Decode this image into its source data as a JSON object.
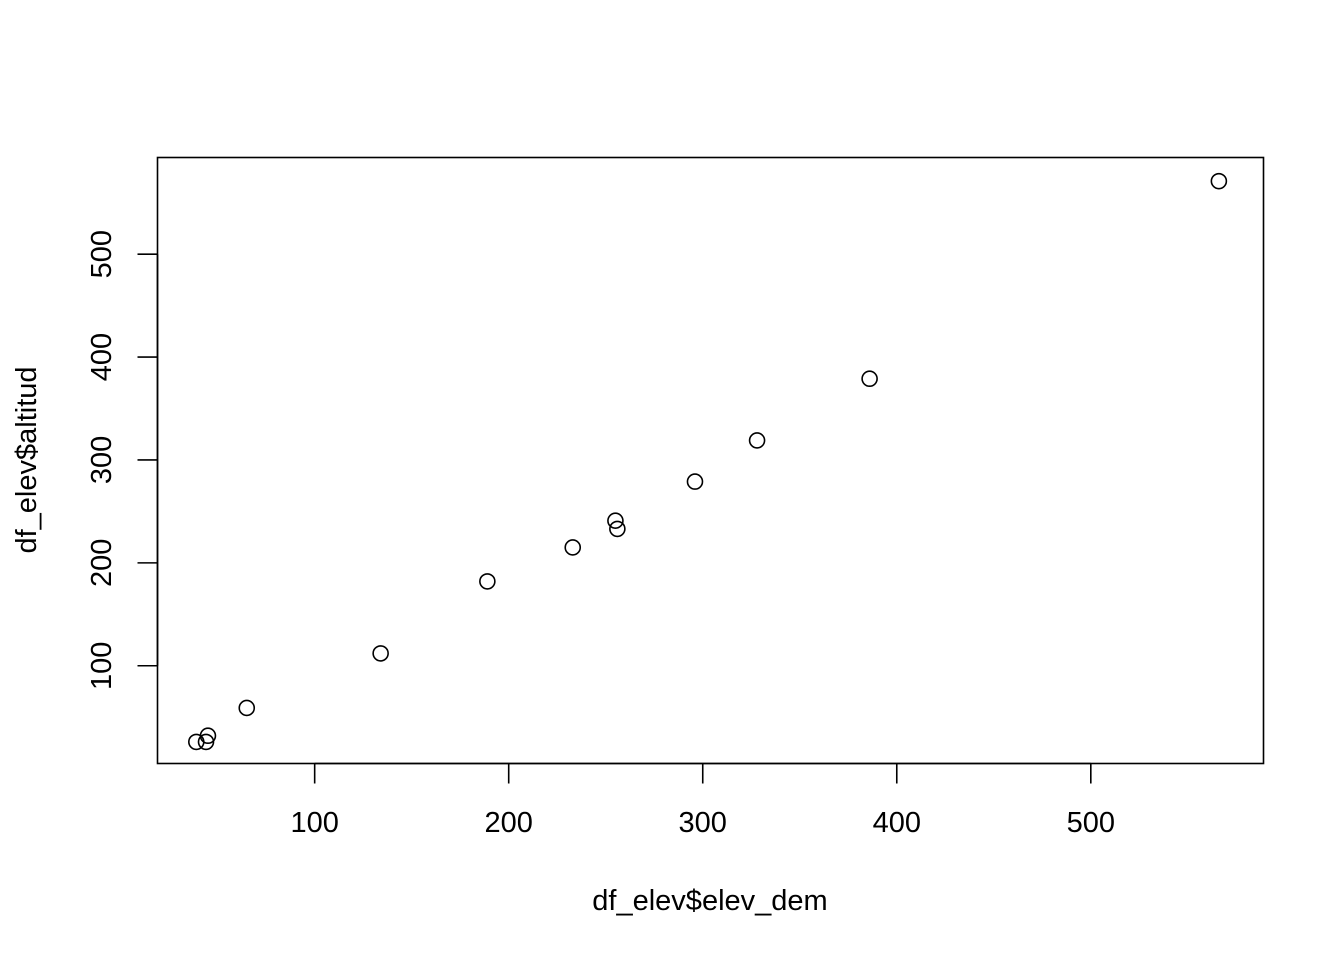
{
  "chart_data": {
    "type": "scatter",
    "title": "",
    "xlabel": "df_elev$elev_dem",
    "ylabel": "df_elev$altitud",
    "xlim": [
      19,
      589
    ],
    "ylim": [
      5,
      594
    ],
    "xticks": [
      100,
      200,
      300,
      400,
      500
    ],
    "yticks": [
      100,
      200,
      300,
      400,
      500
    ],
    "grid": false,
    "marker": "open-circle",
    "color": "#000000",
    "points": [
      {
        "x": 39,
        "y": 26
      },
      {
        "x": 44,
        "y": 26
      },
      {
        "x": 45,
        "y": 32
      },
      {
        "x": 65,
        "y": 59
      },
      {
        "x": 134,
        "y": 112
      },
      {
        "x": 189,
        "y": 182
      },
      {
        "x": 233,
        "y": 215
      },
      {
        "x": 255,
        "y": 241
      },
      {
        "x": 256,
        "y": 233
      },
      {
        "x": 296,
        "y": 279
      },
      {
        "x": 328,
        "y": 319
      },
      {
        "x": 386,
        "y": 379
      },
      {
        "x": 566,
        "y": 571
      }
    ]
  }
}
